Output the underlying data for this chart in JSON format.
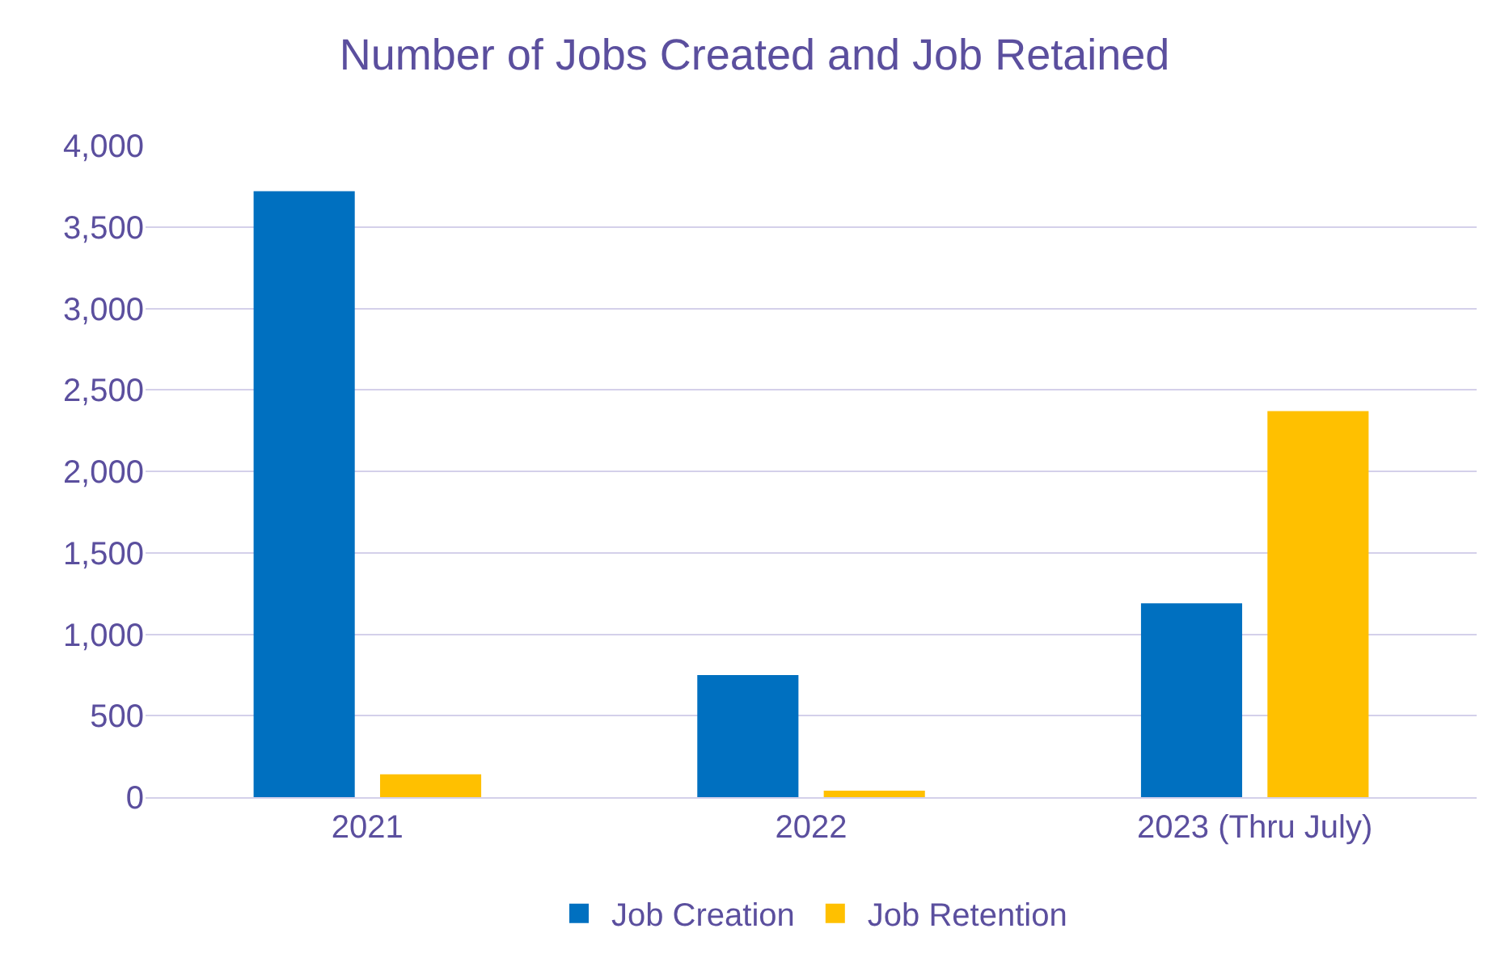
{
  "chart_data": {
    "type": "bar",
    "title": "Number of Jobs Created and Job Retained",
    "categories": [
      "2021",
      "2022",
      "2023 (Thru July)"
    ],
    "series": [
      {
        "name": "Job Creation",
        "color": "#0070c0",
        "values": [
          3720,
          750,
          1190
        ]
      },
      {
        "name": "Job Retention",
        "color": "#ffc000",
        "values": [
          140,
          40,
          2370
        ]
      }
    ],
    "ylim": [
      0,
      4000
    ],
    "yticks": [
      {
        "value": 0,
        "label": "0"
      },
      {
        "value": 500,
        "label": "500"
      },
      {
        "value": 1000,
        "label": "1,000"
      },
      {
        "value": 1500,
        "label": "1,500"
      },
      {
        "value": 2000,
        "label": "2,000"
      },
      {
        "value": 2500,
        "label": "2,500"
      },
      {
        "value": 3000,
        "label": "3,000"
      },
      {
        "value": 3500,
        "label": "3,500"
      },
      {
        "value": 4000,
        "label": "4,000"
      }
    ],
    "grid": "y",
    "legend": "bottom"
  }
}
